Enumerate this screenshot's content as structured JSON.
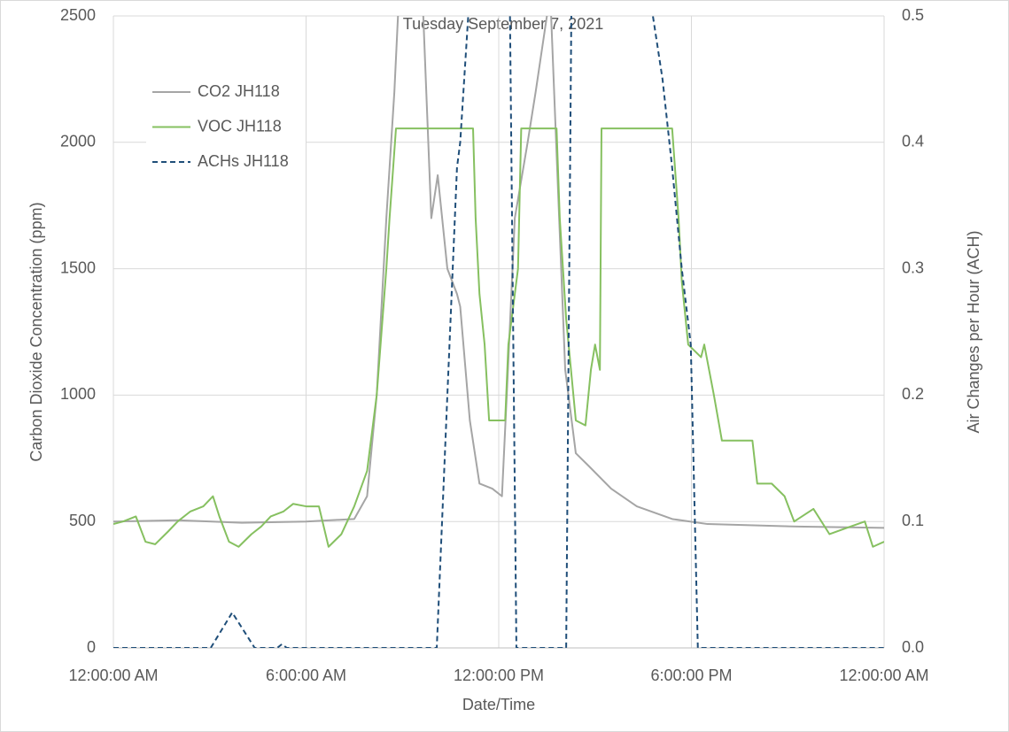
{
  "chart_data": {
    "type": "line",
    "title": "Tuesday September 7, 2021",
    "x_label": "Date/Time",
    "y_label": "Carbon Dioxide Concentration (ppm)",
    "y2_label": "Air Changes per Hour (ACH)",
    "xlim": [
      0,
      24
    ],
    "xticks": [
      {
        "value": 0,
        "label": "12:00:00 AM"
      },
      {
        "value": 6,
        "label": "6:00:00 AM"
      },
      {
        "value": 12,
        "label": "12:00:00 PM"
      },
      {
        "value": 18,
        "label": "6:00:00 PM"
      },
      {
        "value": 24,
        "label": "12:00:00 AM"
      }
    ],
    "ylim": [
      0,
      2500
    ],
    "yticks": [
      0,
      500,
      1000,
      1500,
      2000,
      2500
    ],
    "y2lim": [
      0,
      0.5
    ],
    "y2ticks": [
      {
        "value": 0,
        "label": "0.0"
      },
      {
        "value": 0.1,
        "label": "0.1"
      },
      {
        "value": 0.2,
        "label": "0.2"
      },
      {
        "value": 0.3,
        "label": "0.3"
      },
      {
        "value": 0.4,
        "label": "0.4"
      },
      {
        "value": 0.5,
        "label": "0.5"
      }
    ],
    "grid": true,
    "legend": "upper left",
    "series": [
      {
        "name": "CO2 JH118",
        "color": "#a5a5a5",
        "dash": false,
        "x": [
          0,
          2,
          4,
          6,
          7.5,
          7.9,
          8.2,
          8.5,
          8.75,
          8.9,
          9.3,
          9.65,
          9.9,
          10.1,
          10.4,
          10.7,
          10.8,
          11.1,
          11.4,
          11.8,
          12.1,
          12.25,
          12.5,
          12.9,
          13.15,
          13.5,
          13.6,
          13.85,
          14.07,
          14.4,
          14.8,
          15.5,
          16.3,
          17.4,
          18.5,
          21.3,
          24
        ],
        "values": [
          500,
          505,
          495,
          500,
          510,
          600,
          1000,
          1700,
          2200,
          2600,
          2900,
          2500,
          1700,
          1870,
          1500,
          1400,
          1350,
          900,
          650,
          630,
          600,
          1000,
          1700,
          2000,
          2200,
          2500,
          2600,
          1800,
          1100,
          770,
          720,
          630,
          560,
          510,
          490,
          480,
          475
        ]
      },
      {
        "name": "VOC JH118",
        "color": "#86c060",
        "dash": false,
        "x": [
          0,
          0.3,
          0.7,
          1.0,
          1.3,
          1.7,
          2.0,
          2.4,
          2.8,
          3.1,
          3.3,
          3.6,
          3.9,
          4.3,
          4.6,
          4.9,
          5.3,
          5.6,
          6.0,
          6.4,
          6.7,
          7.1,
          7.5,
          7.9,
          8.2,
          8.5,
          8.6,
          8.8,
          11.2,
          11.28,
          11.4,
          11.56,
          11.7,
          11.9,
          12.2,
          12.3,
          12.6,
          12.7,
          13.8,
          13.9,
          14.1,
          14.4,
          14.7,
          14.87,
          15.0,
          15.15,
          15.2,
          17.4,
          17.6,
          17.7,
          17.9,
          18.3,
          18.4,
          18.7,
          18.95,
          19.9,
          20.05,
          20.5,
          20.9,
          21.2,
          21.8,
          22.3,
          22.95,
          23.4,
          23.65,
          24
        ],
        "values": [
          490,
          500,
          520,
          420,
          410,
          460,
          500,
          540,
          560,
          600,
          520,
          420,
          400,
          450,
          480,
          520,
          540,
          570,
          560,
          560,
          400,
          450,
          560,
          700,
          1000,
          1500,
          1700,
          2055,
          2055,
          1700,
          1400,
          1200,
          900,
          900,
          900,
          1200,
          1500,
          2055,
          2055,
          1700,
          1300,
          900,
          880,
          1100,
          1200,
          1100,
          2055,
          2055,
          1700,
          1450,
          1200,
          1150,
          1200,
          1000,
          820,
          820,
          650,
          650,
          600,
          500,
          550,
          450,
          480,
          500,
          400,
          420
        ]
      },
      {
        "name": "ACHs JH118",
        "color": "#1f4e79",
        "dash": true,
        "axis": "y2",
        "x": [
          0,
          3.03,
          3.7,
          4.4,
          5.1,
          5.25,
          5.4,
          10.07,
          10.4,
          10.7,
          10.8,
          11.1,
          11.3,
          12.3,
          12.35,
          12.55,
          14.1,
          14.26,
          14.4,
          16.6,
          16.8,
          17.1,
          17.4,
          17.7,
          17.98,
          18.2,
          24
        ],
        "values": [
          0,
          0,
          0.028,
          0,
          0,
          0.003,
          0,
          0,
          0.2,
          0.38,
          0.4,
          0.52,
          0.6,
          0.6,
          0.5,
          0,
          0,
          0.5,
          0.6,
          0.6,
          0.5,
          0.45,
          0.38,
          0.3,
          0.24,
          0,
          0
        ]
      }
    ]
  }
}
